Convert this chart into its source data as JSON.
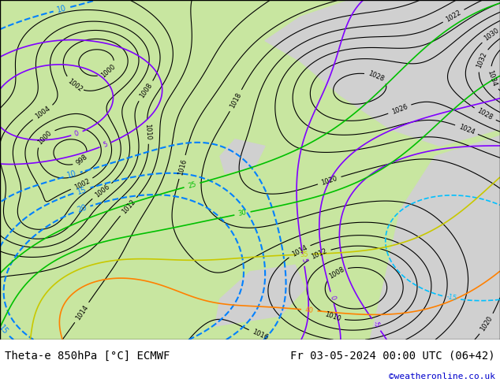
{
  "title_left": "Theta-e 850hPa [°C] ECMWF",
  "title_right": "Fr 03-05-2024 00:00 UTC (06+42)",
  "copyright": "©weatheronline.co.uk",
  "bg_color": "#ffffff",
  "map_bg_green": "#c8e6a0",
  "map_bg_gray": "#d0d0d0",
  "contour_color_black": "#000000",
  "contour_color_blue1": "#0080ff",
  "contour_color_blue2": "#00c0ff",
  "contour_color_purple": "#8000ff",
  "contour_color_green": "#00c000",
  "contour_color_yellow": "#c8c800",
  "contour_color_orange": "#ff8000",
  "label_fontsize": 9,
  "title_fontsize": 10,
  "copyright_fontsize": 8,
  "copyright_color": "#0000cc",
  "figsize": [
    6.34,
    4.9
  ],
  "dpi": 100
}
